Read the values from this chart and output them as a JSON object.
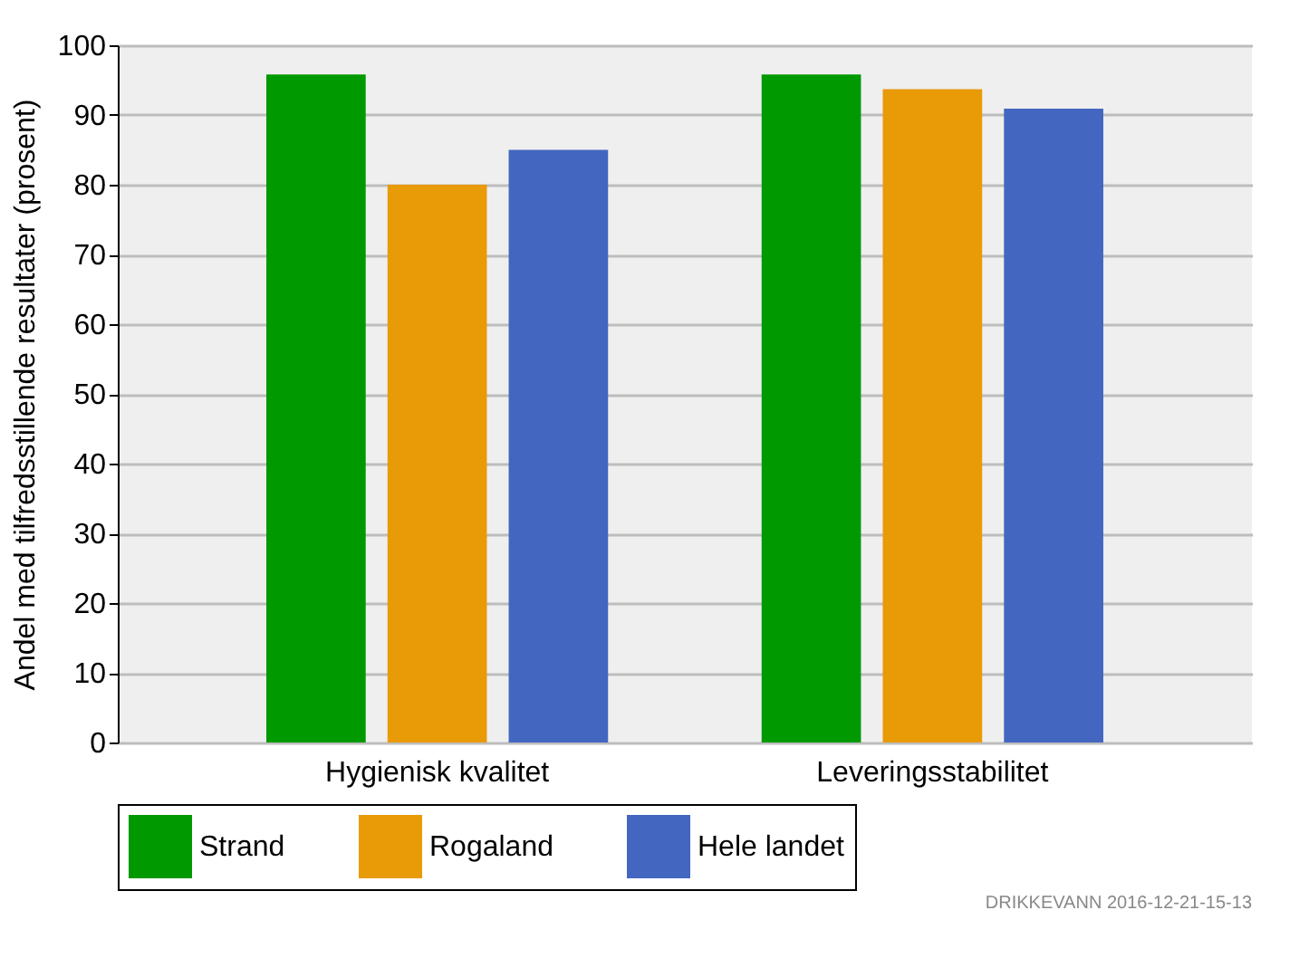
{
  "chart_data": {
    "type": "bar",
    "ylabel": "Andel med tilfredsstillende resultater (prosent)",
    "categories": [
      "Hygienisk kvalitet",
      "Leveringsstabilitet"
    ],
    "series": [
      {
        "name": "Strand",
        "color": "#009900",
        "values": [
          95.8,
          95.8
        ]
      },
      {
        "name": "Rogaland",
        "color": "#e99a07",
        "values": [
          80,
          93.7
        ]
      },
      {
        "name": "Hele landet",
        "color": "#4367c0",
        "values": [
          85,
          90.9
        ]
      }
    ],
    "ylim": [
      0,
      100
    ],
    "yticks": [
      0,
      10,
      20,
      30,
      40,
      50,
      60,
      70,
      80,
      90,
      100
    ],
    "grid": "y",
    "legend": "bottom",
    "annotations": [
      "DRIKKEVANN  2016-12-21-15-13"
    ]
  }
}
